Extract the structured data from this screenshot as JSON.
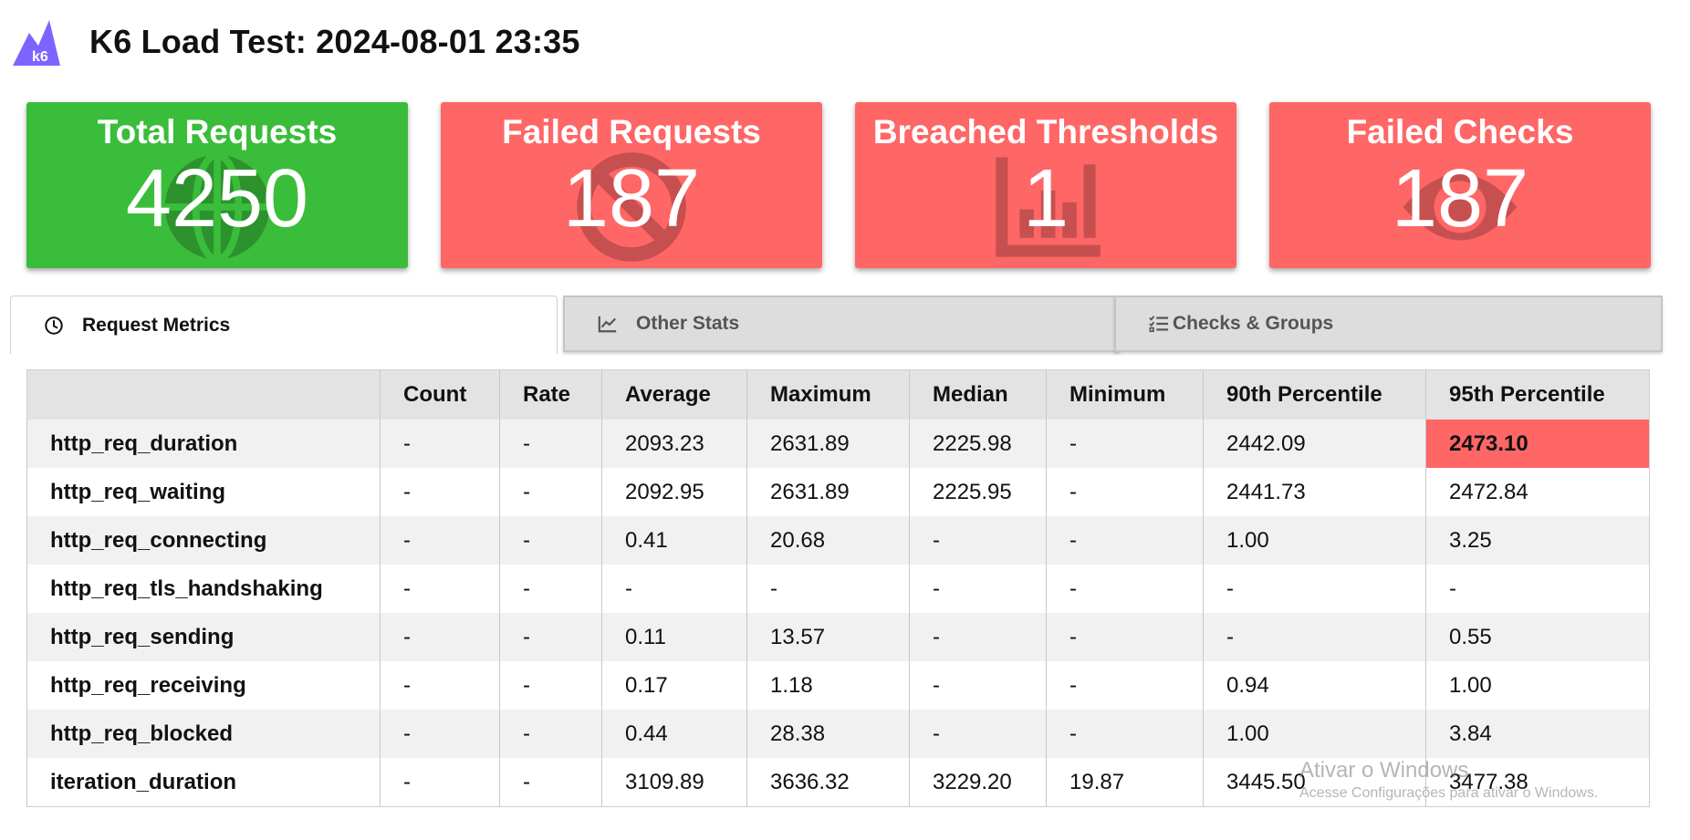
{
  "header": {
    "logo_text": "k6",
    "title": "K6 Load Test: 2024-08-01 23:35"
  },
  "colors": {
    "success": "#3abd3a",
    "failure": "#ff6666",
    "brand": "#7d64ff"
  },
  "cards": [
    {
      "label": "Total Requests",
      "value": "4250",
      "status": "success",
      "icon": "globe-icon"
    },
    {
      "label": "Failed Requests",
      "value": "187",
      "status": "failure",
      "icon": "ban-icon"
    },
    {
      "label": "Breached Thresholds",
      "value": "1",
      "status": "failure",
      "icon": "chart-bar-icon"
    },
    {
      "label": "Failed Checks",
      "value": "187",
      "status": "failure",
      "icon": "eye-icon"
    }
  ],
  "tabs": [
    {
      "label": "Request Metrics",
      "icon": "clock-icon",
      "active": true
    },
    {
      "label": "Other Stats",
      "icon": "line-chart-icon",
      "active": false
    },
    {
      "label": "Checks & Groups",
      "icon": "checklist-icon",
      "active": false
    }
  ],
  "table": {
    "headers": [
      "",
      "Count",
      "Rate",
      "Average",
      "Maximum",
      "Median",
      "Minimum",
      "90th Percentile",
      "95th Percentile"
    ],
    "rows": [
      {
        "metric": "http_req_duration",
        "values": [
          "-",
          "-",
          "2093.23",
          "2631.89",
          "2225.98",
          "-",
          "2442.09",
          "2473.10"
        ],
        "breached_col": 7
      },
      {
        "metric": "http_req_waiting",
        "values": [
          "-",
          "-",
          "2092.95",
          "2631.89",
          "2225.95",
          "-",
          "2441.73",
          "2472.84"
        ]
      },
      {
        "metric": "http_req_connecting",
        "values": [
          "-",
          "-",
          "0.41",
          "20.68",
          "-",
          "-",
          "1.00",
          "3.25"
        ]
      },
      {
        "metric": "http_req_tls_handshaking",
        "values": [
          "-",
          "-",
          "-",
          "-",
          "-",
          "-",
          "-",
          "-"
        ]
      },
      {
        "metric": "http_req_sending",
        "values": [
          "-",
          "-",
          "0.11",
          "13.57",
          "-",
          "-",
          "-",
          "0.55"
        ]
      },
      {
        "metric": "http_req_receiving",
        "values": [
          "-",
          "-",
          "0.17",
          "1.18",
          "-",
          "-",
          "0.94",
          "1.00"
        ]
      },
      {
        "metric": "http_req_blocked",
        "values": [
          "-",
          "-",
          "0.44",
          "28.38",
          "-",
          "-",
          "1.00",
          "3.84"
        ]
      },
      {
        "metric": "iteration_duration",
        "values": [
          "-",
          "-",
          "3109.89",
          "3636.32",
          "3229.20",
          "19.87",
          "3445.50",
          "3477.38"
        ]
      }
    ]
  },
  "watermark": {
    "title": "Ativar o Windows",
    "subtitle": "Acesse Configurações para ativar o Windows."
  }
}
